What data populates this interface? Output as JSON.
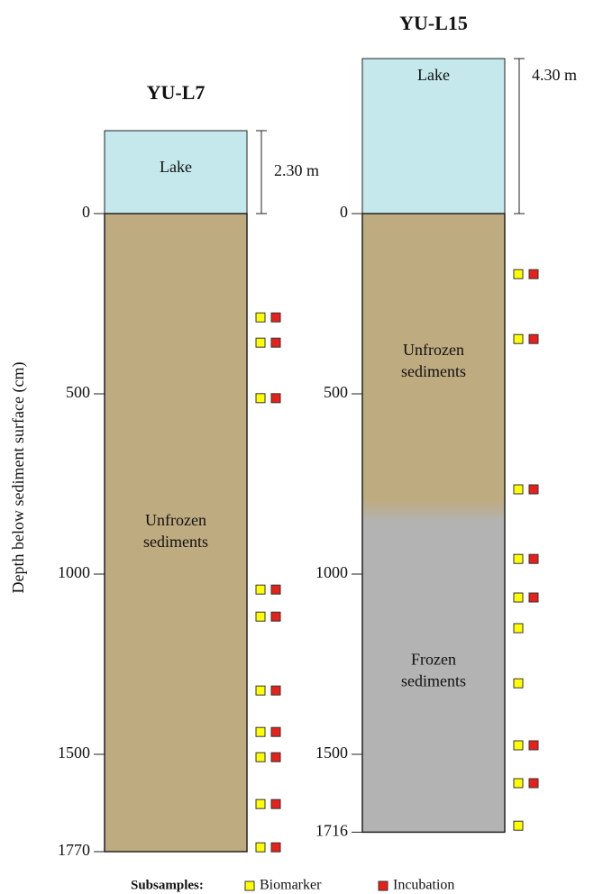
{
  "axis_label": "Depth below sediment surface (cm)",
  "cores": [
    {
      "title": "YU-L7",
      "lake_label": "Lake",
      "water_depth": {
        "value": 230,
        "label": "2.30 m"
      },
      "ticks": [
        0,
        500,
        1000,
        1500,
        1770
      ],
      "units": [
        {
          "lines": [
            "Unfrozen",
            "sediments"
          ],
          "top": 0,
          "color": "#bfab80"
        }
      ],
      "samples": [
        {
          "depth": 288,
          "in": [
            true,
            true
          ]
        },
        {
          "depth": 358,
          "in": [
            true,
            true
          ]
        },
        {
          "depth": 512,
          "in": [
            true,
            true
          ]
        },
        {
          "depth": 1043,
          "in": [
            true,
            true
          ]
        },
        {
          "depth": 1118,
          "in": [
            true,
            true
          ]
        },
        {
          "depth": 1323,
          "in": [
            true,
            true
          ]
        },
        {
          "depth": 1438,
          "in": [
            true,
            true
          ]
        },
        {
          "depth": 1508,
          "in": [
            true,
            true
          ]
        },
        {
          "depth": 1638,
          "in": [
            true,
            true
          ]
        },
        {
          "depth": 1758,
          "in": [
            true,
            true
          ]
        }
      ]
    },
    {
      "title": "YU-L15",
      "lake_label": "Lake",
      "water_depth": {
        "value": 430,
        "label": "4.30 m"
      },
      "ticks": [
        0,
        500,
        1000,
        1500,
        1716
      ],
      "units": [
        {
          "lines": [
            "Unfrozen",
            "sediments"
          ],
          "top": 0,
          "color": "#bfab80"
        },
        {
          "lines": [
            "Frozen",
            "sediments"
          ],
          "top": 825,
          "color": "#b3b3b3"
        }
      ],
      "samples": [
        {
          "depth": 168,
          "in": [
            true,
            true
          ]
        },
        {
          "depth": 348,
          "in": [
            true,
            true
          ]
        },
        {
          "depth": 765,
          "in": [
            true,
            true
          ]
        },
        {
          "depth": 958,
          "in": [
            true,
            true
          ]
        },
        {
          "depth": 1065,
          "in": [
            true,
            true
          ]
        },
        {
          "depth": 1150,
          "in": [
            true,
            false
          ]
        },
        {
          "depth": 1303,
          "in": [
            true,
            false
          ]
        },
        {
          "depth": 1475,
          "in": [
            true,
            true
          ]
        },
        {
          "depth": 1580,
          "in": [
            true,
            true
          ]
        },
        {
          "depth": 1698,
          "in": [
            true,
            false
          ]
        }
      ]
    }
  ],
  "lake_color": "#c5e8ec",
  "legend": {
    "title": "Subsamples:",
    "items": [
      {
        "name": "Biomarker",
        "color": "#ffff00"
      },
      {
        "name": "Incubation",
        "color": "#e8201a"
      }
    ]
  }
}
